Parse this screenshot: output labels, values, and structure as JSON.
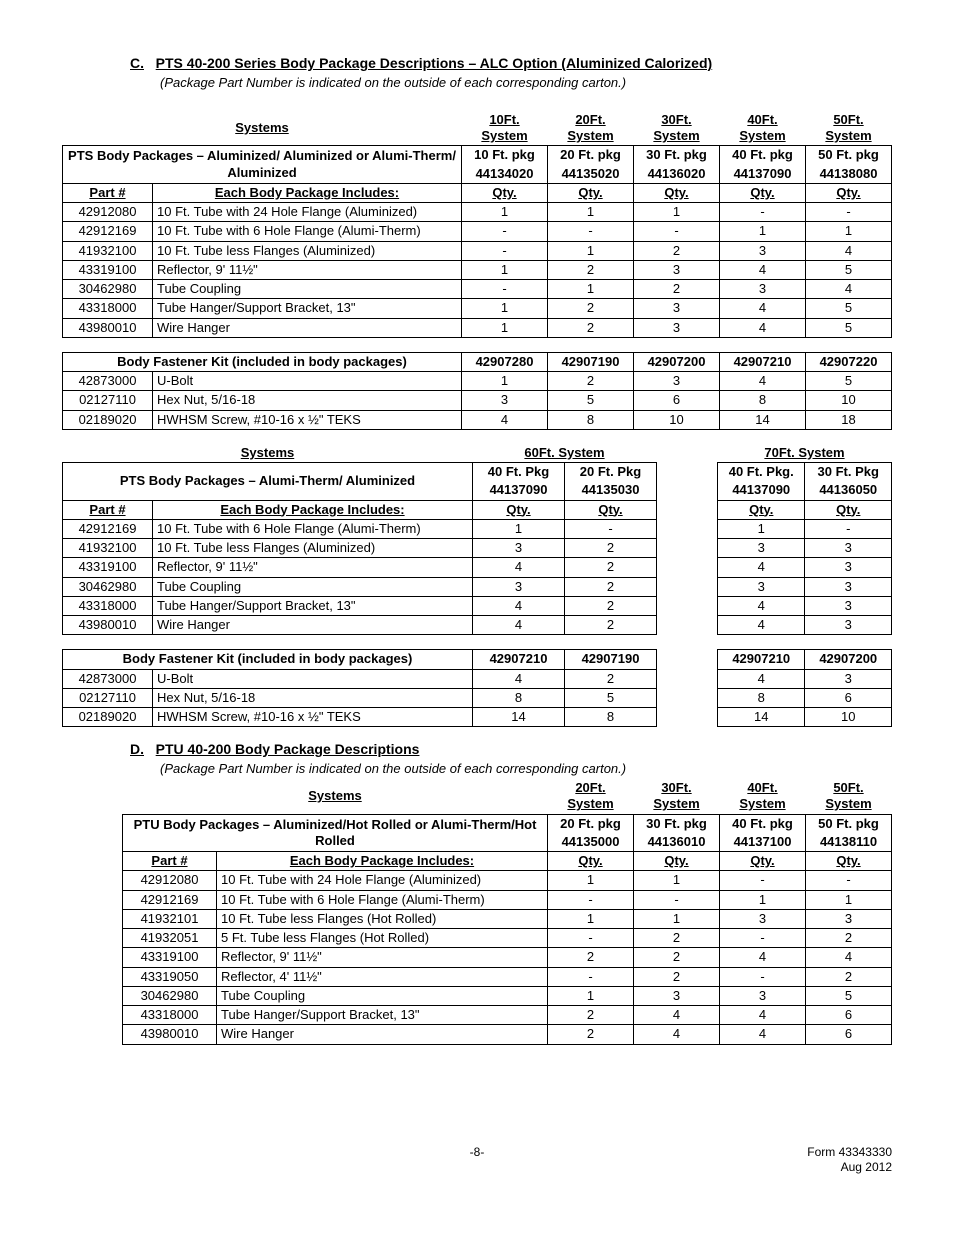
{
  "sectionC": {
    "letter": "C.",
    "title": "PTS 40-200 Series Body Package Descriptions – ALC Option (Aluminized Calorized)",
    "subtitle": "(Package Part Number is indicated on the outside of each corresponding carton.)"
  },
  "table1": {
    "systemsHdr": "Systems",
    "sysCols": [
      "10Ft. System",
      "20Ft. System",
      "30Ft. System",
      "40Ft. System",
      "50Ft. System"
    ],
    "pkgTitle": "PTS Body Packages – Aluminized/ Aluminized or Alumi-Therm/ Aluminized",
    "pkgCols": [
      [
        "10 Ft. pkg",
        "44134020"
      ],
      [
        "20 Ft. pkg",
        "44135020"
      ],
      [
        "30 Ft. pkg",
        "44136020"
      ],
      [
        "40 Ft. pkg",
        "44137090"
      ],
      [
        "50 Ft. pkg",
        "44138080"
      ]
    ],
    "partHdr": "Part #",
    "descHdr": "Each Body Package Includes:",
    "qtyHdr": "Qty.",
    "rows": [
      [
        "42912080",
        "10 Ft. Tube with 24 Hole Flange (Aluminized)",
        "1",
        "1",
        "1",
        "-",
        "-"
      ],
      [
        "42912169",
        "10 Ft. Tube with 6 Hole Flange (Alumi-Therm)",
        "-",
        "-",
        "-",
        "1",
        "1"
      ],
      [
        "41932100",
        "10 Ft. Tube less Flanges (Aluminized)",
        "-",
        "1",
        "2",
        "3",
        "4"
      ],
      [
        "43319100",
        "Reflector, 9' 11½\"",
        "1",
        "2",
        "3",
        "4",
        "5"
      ],
      [
        "30462980",
        "Tube Coupling",
        "-",
        "1",
        "2",
        "3",
        "4"
      ],
      [
        "43318000",
        "Tube Hanger/Support Bracket, 13\"",
        "1",
        "2",
        "3",
        "4",
        "5"
      ],
      [
        "43980010",
        "Wire Hanger",
        "1",
        "2",
        "3",
        "4",
        "5"
      ]
    ]
  },
  "table2": {
    "kitHdr": "Body Fastener Kit (included in body packages)",
    "kitCols": [
      "42907280",
      "42907190",
      "42907200",
      "42907210",
      "42907220"
    ],
    "rows": [
      [
        "42873000",
        "U-Bolt",
        "1",
        "2",
        "3",
        "4",
        "5"
      ],
      [
        "02127110",
        "Hex Nut, 5/16-18",
        "3",
        "5",
        "6",
        "8",
        "10"
      ],
      [
        "02189020",
        "HWHSM Screw, #10-16 x ½\" TEKS",
        "4",
        "8",
        "10",
        "14",
        "18"
      ]
    ]
  },
  "table3": {
    "left": {
      "systemsHdr": "Systems",
      "sysHdr": "60Ft. System",
      "pkgTitle": "PTS Body Packages – Alumi-Therm/ Aluminized",
      "pkgCols": [
        [
          "40 Ft. Pkg",
          "44137090"
        ],
        [
          "20 Ft. Pkg",
          "44135030"
        ]
      ],
      "partHdr": "Part #",
      "descHdr": "Each Body Package Includes:",
      "qtyHdr": "Qty.",
      "rows": [
        [
          "42912169",
          "10 Ft. Tube with 6 Hole Flange (Alumi-Therm)",
          "1",
          "-"
        ],
        [
          "41932100",
          "10 Ft. Tube less Flanges (Aluminized)",
          "3",
          "2"
        ],
        [
          "43319100",
          "Reflector, 9' 11½\"",
          "4",
          "2"
        ],
        [
          "30462980",
          "Tube Coupling",
          "3",
          "2"
        ],
        [
          "43318000",
          "Tube Hanger/Support Bracket, 13\"",
          "4",
          "2"
        ],
        [
          "43980010",
          "Wire Hanger",
          "4",
          "2"
        ]
      ]
    },
    "right": {
      "sysHdr": "70Ft. System",
      "pkgCols": [
        [
          "40 Ft. Pkg.",
          "44137090"
        ],
        [
          "30 Ft. Pkg",
          "44136050"
        ]
      ],
      "qtyHdr": "Qty.",
      "rows": [
        [
          "1",
          "-"
        ],
        [
          "3",
          "3"
        ],
        [
          "4",
          "3"
        ],
        [
          "3",
          "3"
        ],
        [
          "4",
          "3"
        ],
        [
          "4",
          "3"
        ]
      ]
    }
  },
  "table4": {
    "left": {
      "kitHdr": "Body Fastener Kit (included in body packages)",
      "kitCols": [
        "42907210",
        "42907190"
      ],
      "rows": [
        [
          "42873000",
          "U-Bolt",
          "4",
          "2"
        ],
        [
          "02127110",
          "Hex Nut, 5/16-18",
          "8",
          "5"
        ],
        [
          "02189020",
          "HWHSM Screw, #10-16 x ½\" TEKS",
          "14",
          "8"
        ]
      ]
    },
    "right": {
      "kitCols": [
        "42907210",
        "42907200"
      ],
      "rows": [
        [
          "4",
          "3"
        ],
        [
          "8",
          "6"
        ],
        [
          "14",
          "10"
        ]
      ]
    }
  },
  "sectionD": {
    "letter": "D.",
    "title": "PTU 40-200 Body Package Descriptions",
    "subtitle": "(Package Part Number is indicated on the outside of each corresponding carton.)"
  },
  "table5": {
    "systemsHdr": "Systems",
    "sysCols": [
      "20Ft. System",
      "30Ft. System",
      "40Ft. System",
      "50Ft. System"
    ],
    "pkgTitle": "PTU Body Packages – Aluminized/Hot Rolled or Alumi-Therm/Hot Rolled",
    "pkgCols": [
      [
        "20 Ft. pkg",
        "44135000"
      ],
      [
        "30 Ft. pkg",
        "44136010"
      ],
      [
        "40 Ft. pkg",
        "44137100"
      ],
      [
        "50 Ft. pkg",
        "44138110"
      ]
    ],
    "partHdr": "Part #",
    "descHdr": "Each Body Package Includes:",
    "qtyHdr": "Qty.",
    "rows": [
      [
        "42912080",
        "10 Ft. Tube with 24 Hole Flange (Aluminized)",
        "1",
        "1",
        "-",
        "-"
      ],
      [
        "42912169",
        "10 Ft. Tube with 6 Hole Flange (Alumi-Therm)",
        "-",
        "-",
        "1",
        "1"
      ],
      [
        "41932101",
        "10 Ft. Tube less Flanges (Hot Rolled)",
        "1",
        "1",
        "3",
        "3"
      ],
      [
        "41932051",
        "5 Ft. Tube less Flanges (Hot Rolled)",
        "-",
        "2",
        "-",
        "2"
      ],
      [
        "43319100",
        "Reflector, 9' 11½\"",
        "2",
        "2",
        "4",
        "4"
      ],
      [
        "43319050",
        "Reflector, 4' 11½\"",
        "-",
        "2",
        "-",
        "2"
      ],
      [
        "30462980",
        "Tube Coupling",
        "1",
        "3",
        "3",
        "5"
      ],
      [
        "43318000",
        "Tube Hanger/Support Bracket, 13\"",
        "2",
        "4",
        "4",
        "6"
      ],
      [
        "43980010",
        "Wire Hanger",
        "2",
        "4",
        "4",
        "6"
      ]
    ]
  },
  "footer": {
    "page": "-8-",
    "form": "Form 43343330",
    "date": "Aug 2012"
  }
}
